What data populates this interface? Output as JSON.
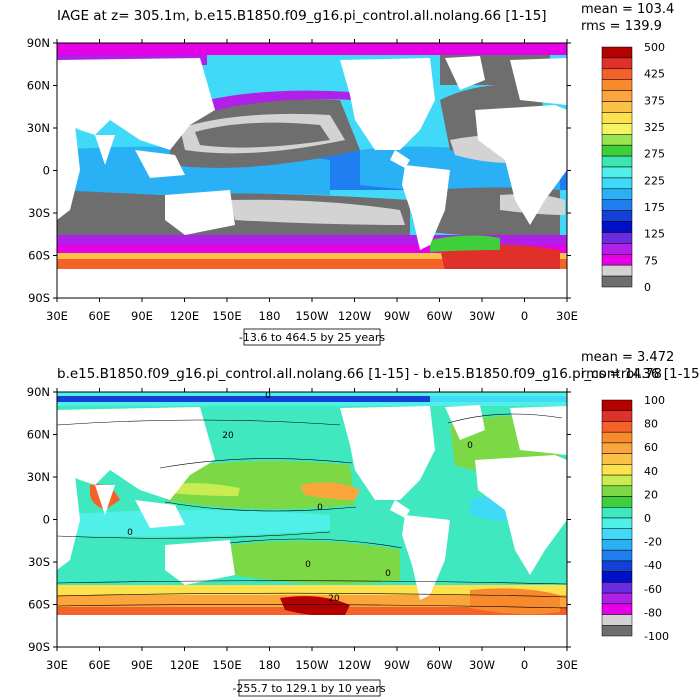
{
  "panels": [
    {
      "id": "iage",
      "title": "IAGE at z= 305.1m, b.e15.B1850.f09_g16.pi_control.all.nolang.66 [1-15]",
      "stats": {
        "mean": "mean = 103.4",
        "rms": "rms = 139.9"
      },
      "range_label": "-13.6 to 464.5 by 25 years",
      "lat_ticks": [
        "90N",
        "60N",
        "30N",
        "0",
        "30S",
        "60S",
        "90S"
      ],
      "lon_ticks": [
        "30E",
        "60E",
        "90E",
        "120E",
        "150E",
        "180",
        "150W",
        "120W",
        "90W",
        "60W",
        "30W",
        "0",
        "30E"
      ],
      "colorbar": {
        "labels": [
          "500",
          "425",
          "375",
          "325",
          "275",
          "225",
          "175",
          "125",
          "75",
          "0"
        ],
        "colors": [
          "#b40000",
          "#e0302a",
          "#f4622a",
          "#f88a2e",
          "#fba63c",
          "#fbc24a",
          "#fde24e",
          "#f5f562",
          "#9be44f",
          "#3ecf3a",
          "#3ee5b0",
          "#50f0e8",
          "#40d9f8",
          "#2ab0f4",
          "#1f7ff0",
          "#1440d8",
          "#0010c8",
          "#6a2ce0",
          "#b020e8",
          "#e600e6",
          "#d3d3d3",
          "#6e6e6e"
        ]
      }
    },
    {
      "id": "diff",
      "title": "b.e15.B1850.f09_g16.pi_control.all.nolang.66 [1-15] - b.e15.B1850.f09_g16.pi_control.36 [1-15]",
      "stats": {
        "mean": "mean = 3.472",
        "rms": "rms = 14.78"
      },
      "range_label": "-255.7 to 129.1 by 10 years",
      "lat_ticks": [
        "90N",
        "60N",
        "30N",
        "0",
        "30S",
        "60S",
        "90S"
      ],
      "lon_ticks": [
        "30E",
        "60E",
        "90E",
        "120E",
        "150E",
        "180",
        "150W",
        "120W",
        "90W",
        "60W",
        "30W",
        "0",
        "30E"
      ],
      "contour_labels": [
        "0",
        "0",
        "0",
        "0",
        "0",
        "0",
        "20",
        "20"
      ],
      "colorbar": {
        "labels": [
          "100",
          "80",
          "60",
          "40",
          "20",
          "0",
          "-20",
          "-40",
          "-60",
          "-80",
          "-100"
        ],
        "colors": [
          "#b40000",
          "#e0302a",
          "#f4622a",
          "#f88a2e",
          "#fba63c",
          "#fbc24a",
          "#fde24e",
          "#c8ec52",
          "#7cd844",
          "#3ecf3a",
          "#40e8c0",
          "#50f0e8",
          "#40d9f8",
          "#2ab0f4",
          "#1f7ff0",
          "#1440d8",
          "#0010c8",
          "#6a2ce0",
          "#b020e8",
          "#e600e6",
          "#d3d3d3",
          "#6e6e6e"
        ]
      }
    }
  ],
  "colors": {
    "land": "#ffffff",
    "frame": "#000000",
    "grey_dark": "#6e6e6e",
    "grey_light": "#d3d3d3"
  }
}
